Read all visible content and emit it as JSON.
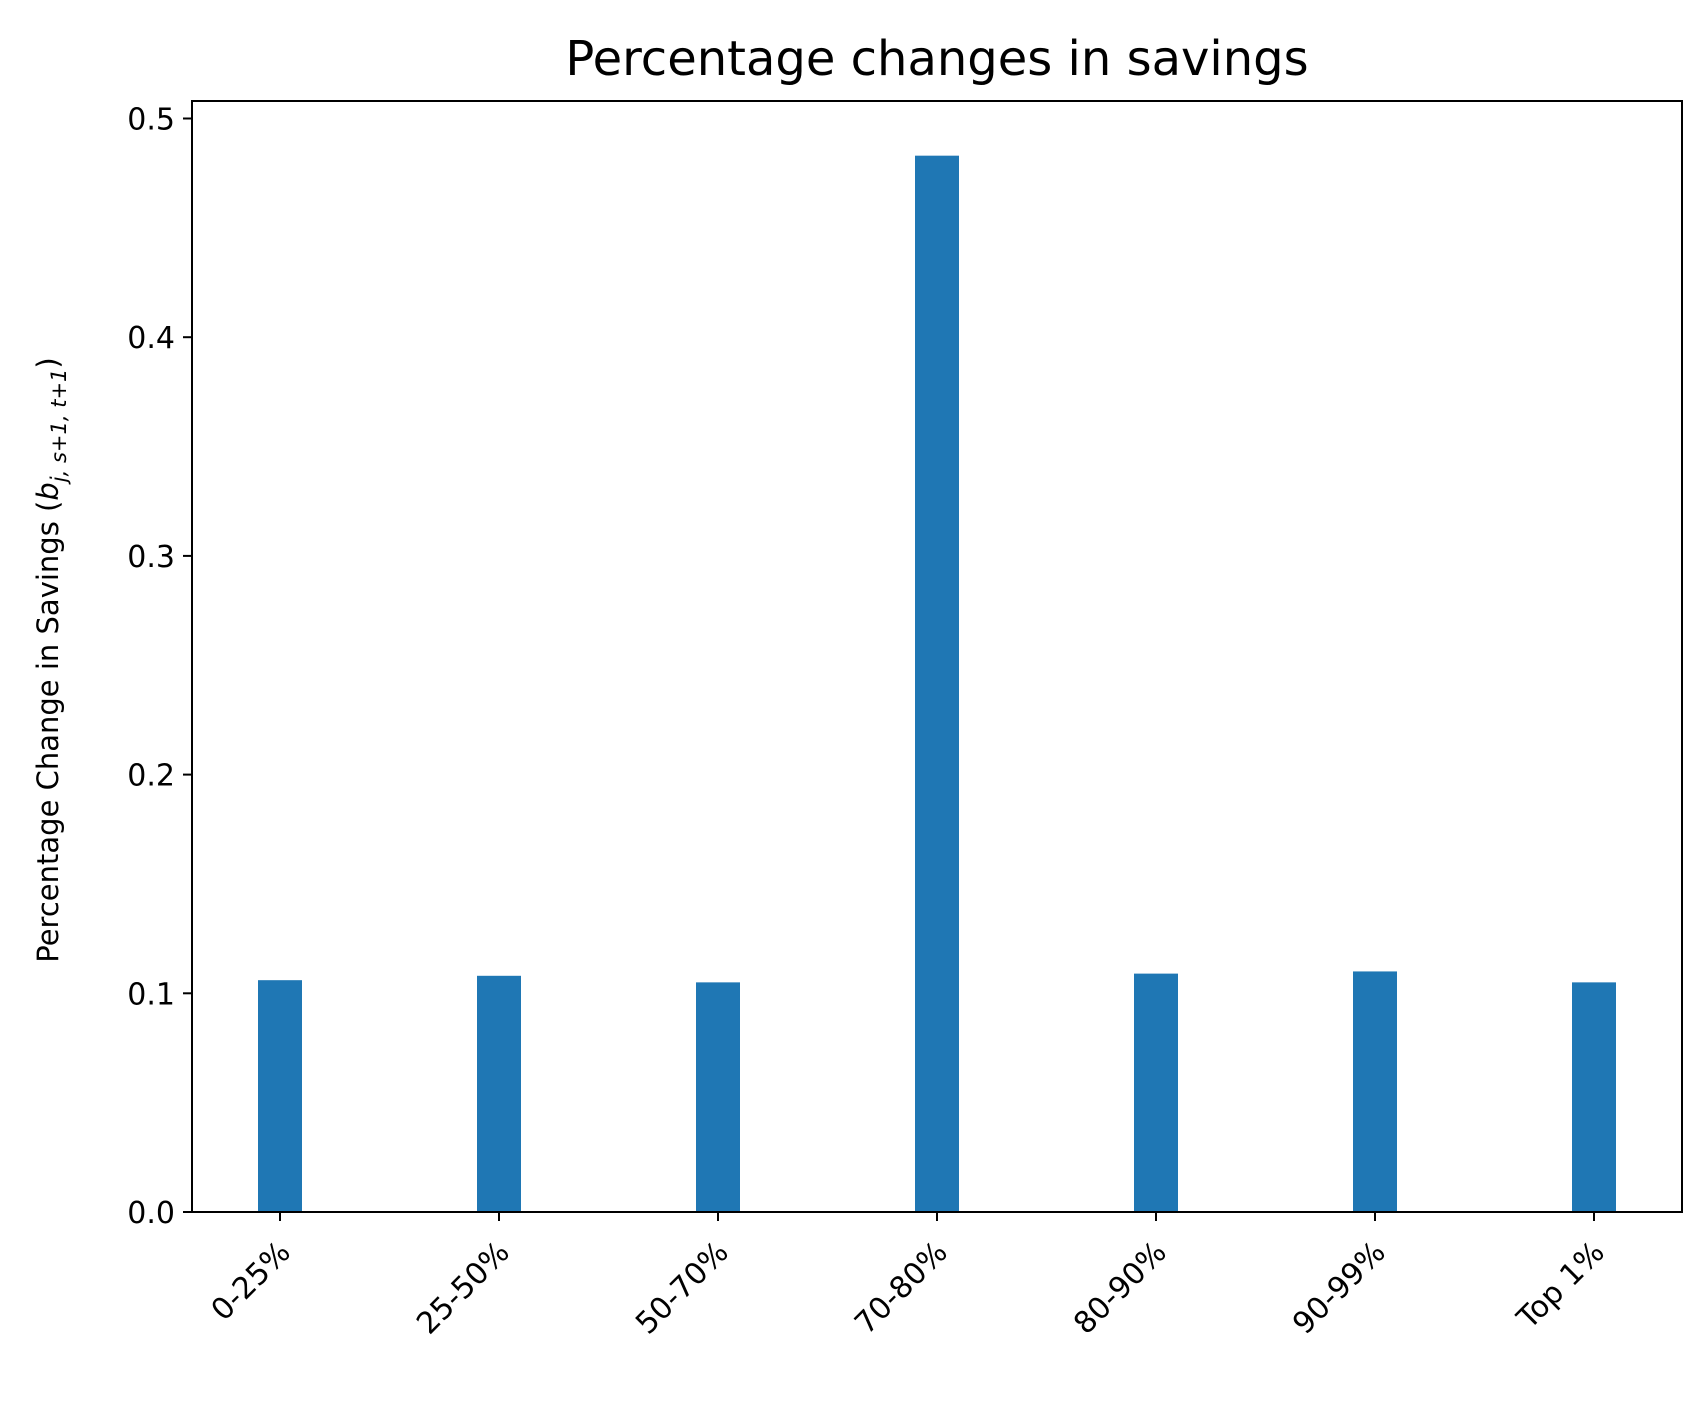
{
  "chart_data": {
    "type": "bar",
    "title": "Percentage changes in savings",
    "xlabel": "",
    "ylabel": {
      "prefix": "Percentage Change in Savings (",
      "symbol": "b",
      "subscript": "j, s+1, t+1",
      "suffix": ")"
    },
    "categories": [
      "0-25%",
      "25-50%",
      "50-70%",
      "70-80%",
      "80-90%",
      "90-99%",
      "Top 1%"
    ],
    "values": [
      0.106,
      0.108,
      0.105,
      0.483,
      0.109,
      0.11,
      0.105
    ],
    "ylim": [
      0,
      0.508
    ],
    "yticks": [
      {
        "value": 0.0,
        "label": "0.0"
      },
      {
        "value": 0.1,
        "label": "0.1"
      },
      {
        "value": 0.2,
        "label": "0.2"
      },
      {
        "value": 0.3,
        "label": "0.3"
      },
      {
        "value": 0.4,
        "label": "0.4"
      },
      {
        "value": 0.5,
        "label": "0.5"
      }
    ],
    "bar_color": "#1f77b4",
    "grid": false,
    "legend": "none",
    "xtick_rotation_deg": 45
  }
}
